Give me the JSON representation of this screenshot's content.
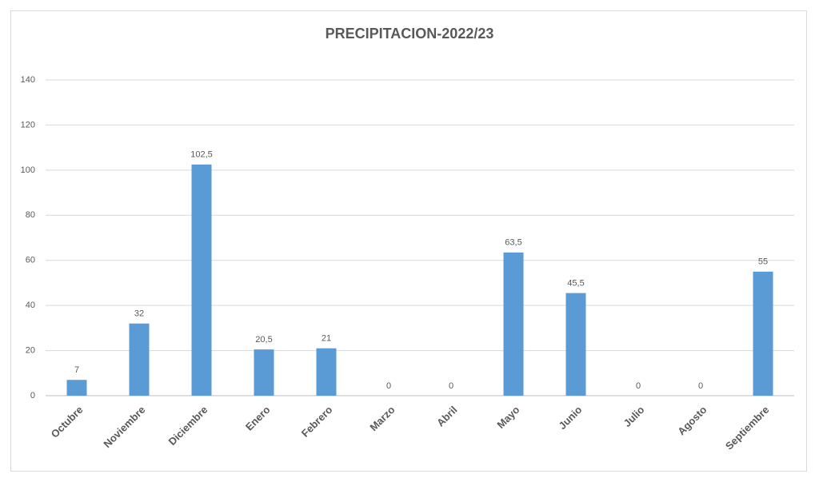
{
  "chart_data": {
    "type": "bar",
    "title": "PRECIPITACION-2022/23",
    "categories": [
      "Octubre",
      "Noviembre",
      "Diciembre",
      "Enero",
      "Febrero",
      "Marzo",
      "Abril",
      "Mayo",
      "Junio",
      "Julio",
      "Agosto",
      "Septiembre"
    ],
    "values": [
      7,
      32,
      102.5,
      20.5,
      21,
      0,
      0,
      63.5,
      45.5,
      0,
      0,
      55
    ],
    "value_labels": [
      "7",
      "32",
      "102,5",
      "20,5",
      "21",
      "0",
      "0",
      "63,5",
      "45,5",
      "0",
      "0",
      "55"
    ],
    "color": "#5b9bd5",
    "ylim": [
      0,
      140
    ],
    "yticks": [
      0,
      20,
      40,
      60,
      80,
      100,
      120,
      140
    ],
    "grid": true
  }
}
